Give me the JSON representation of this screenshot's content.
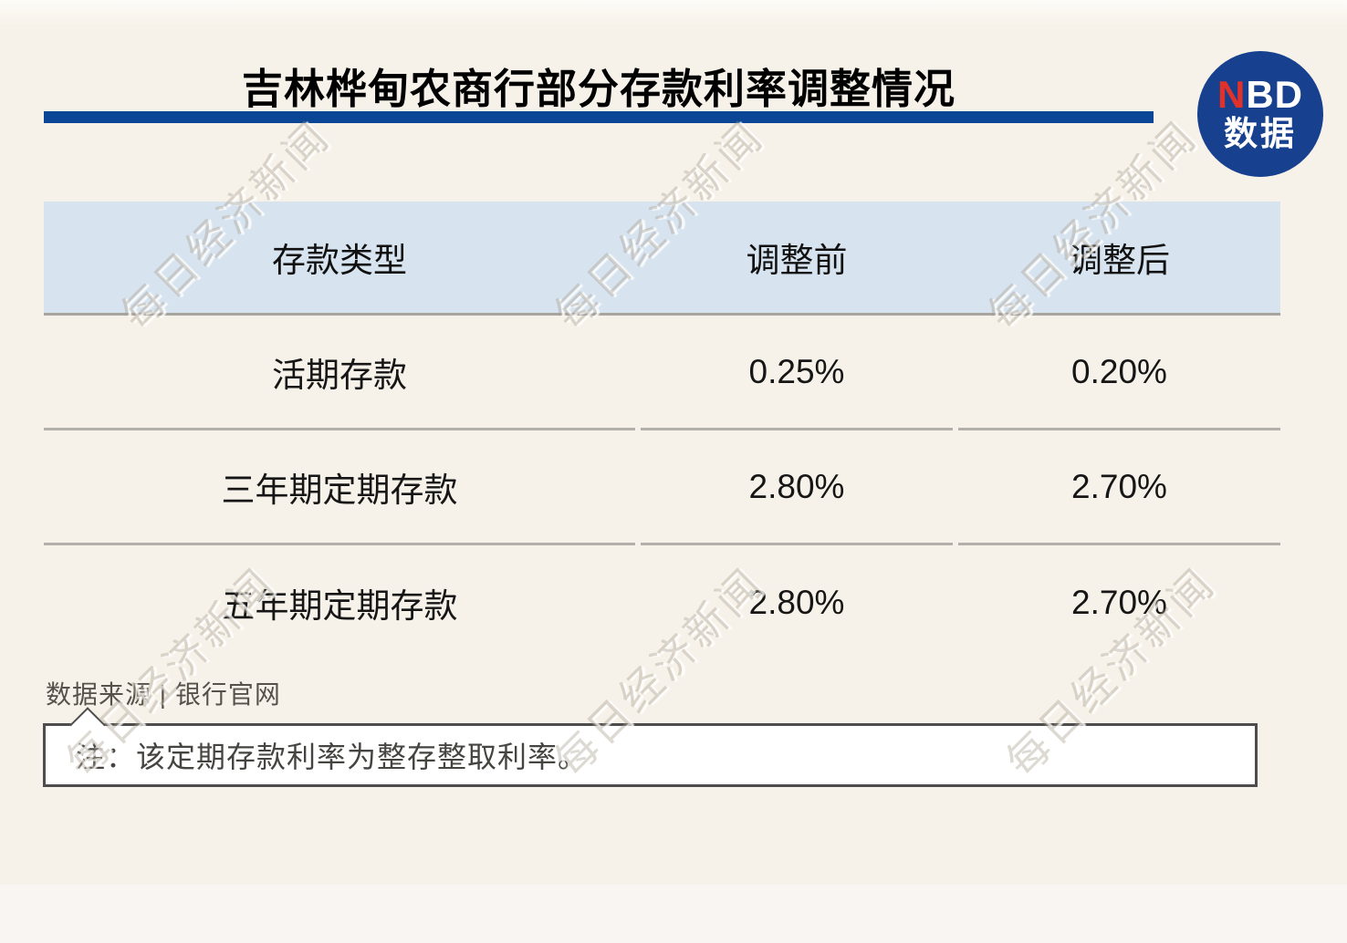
{
  "page": {
    "watermark": "每日经济新闻",
    "background_color": "#f7f2e9",
    "bottom_band_color": "#f9f5f2"
  },
  "header": {
    "title": "吉林桦甸农商行部分存款利率调整情况",
    "rule_color": "#0b4596"
  },
  "logo": {
    "top_red": "N",
    "top_white": "BD",
    "bottom": "数据",
    "circle_color": "#17418f",
    "n_color": "#e0312a"
  },
  "chart_data": {
    "type": "table",
    "title": "吉林桦甸农商行部分存款利率调整情况",
    "columns": [
      "存款类型",
      "调整前",
      "调整后"
    ],
    "rows": [
      [
        "活期存款",
        "0.25%",
        "0.20%"
      ],
      [
        "三年期定期存款",
        "2.80%",
        "2.70%"
      ],
      [
        "五年期定期存款",
        "2.80%",
        "2.70%"
      ]
    ],
    "header_bg": "#d7e4f0",
    "source": "数据来源 | 银行官网",
    "note": "注：该定期存款利率为整存整取利率。"
  }
}
